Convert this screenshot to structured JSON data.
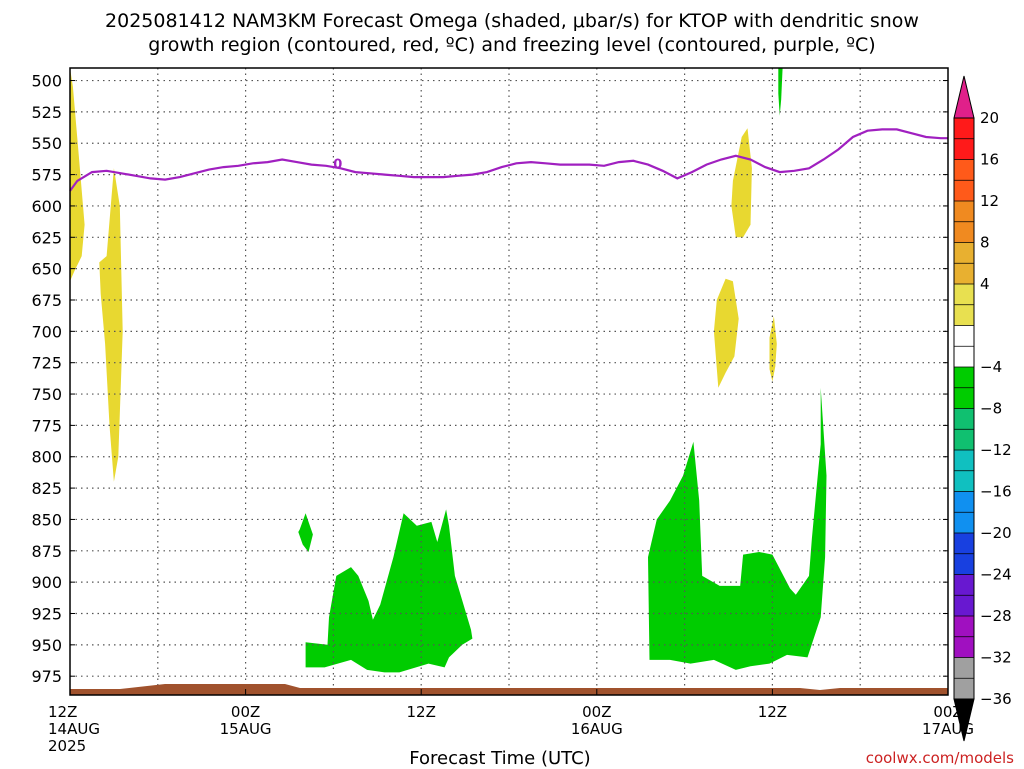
{
  "title_line1": "2025081412 NAM3KM Forecast Omega (shaded, μbar/s) for KTOP with dendritic snow",
  "title_line2": "growth region (contoured, red, ºC) and freezing level (contoured, purple, ºC)",
  "credit": "coolwx.com/models",
  "colors": {
    "freezing_level": "#a020c0",
    "upward_motion": "#00cc00",
    "downward_motion": "#e8d830",
    "terrain": "#a0522d"
  },
  "chart_data": {
    "type": "heatmap",
    "xlabel": "Forecast Time (UTC)",
    "x_ticks": [
      {
        "hour": 0,
        "line1": "12Z",
        "line2": "14AUG",
        "line3": "2025"
      },
      {
        "hour": 12,
        "line1": "00Z",
        "line2": "15AUG",
        "line3": ""
      },
      {
        "hour": 24,
        "line1": "12Z",
        "line2": "",
        "line3": ""
      },
      {
        "hour": 36,
        "line1": "00Z",
        "line2": "16AUG",
        "line3": ""
      },
      {
        "hour": 48,
        "line1": "12Z",
        "line2": "",
        "line3": ""
      },
      {
        "hour": 60,
        "line1": "00Z",
        "line2": "17AUG",
        "line3": ""
      }
    ],
    "xlim": [
      0,
      60
    ],
    "ylim": [
      490,
      990
    ],
    "y_ticks": [
      500,
      525,
      550,
      575,
      600,
      625,
      650,
      675,
      700,
      725,
      750,
      775,
      800,
      825,
      850,
      875,
      900,
      925,
      950,
      975
    ],
    "grid": true,
    "colorbar": {
      "labels": [
        "20",
        "16",
        "12",
        "8",
        "4",
        "−4",
        "−8",
        "−12",
        "−16",
        "−20",
        "−24",
        "−28",
        "−32",
        "−36"
      ],
      "colors": [
        "#ff1a1a",
        "#ff5a1a",
        "#f08a20",
        "#e8b030",
        "#e8e050",
        "#ffffff",
        "#00cc00",
        "#10c070",
        "#10c0c0",
        "#1090f0",
        "#1840e0",
        "#6818d0",
        "#a010c0",
        "#a0a0a0"
      ],
      "top_color": "#e0208a",
      "bottom_color": "#000000"
    },
    "freezing_level_label": "0",
    "freezing_level": {
      "hour": [
        0,
        0.5,
        1.5,
        2.5,
        3.5,
        4.5,
        5.5,
        6.5,
        7.5,
        8.5,
        9.5,
        10.5,
        11.5,
        12.5,
        13.5,
        14.5,
        15.5,
        16.5,
        17.5,
        18.5,
        19.5,
        20.5,
        21.5,
        22.5,
        23.5,
        24.5,
        25.5,
        26.5,
        27.5,
        28.5,
        29.5,
        30.5,
        31.5,
        32.5,
        33.5,
        34.5,
        35.5,
        36.5,
        37.5,
        38.5,
        39.5,
        40.5,
        41.5,
        42.5,
        43.5,
        44.5,
        45.5,
        46.5,
        47.5,
        48.5,
        49.5,
        50.5,
        51.5,
        52.5,
        53.5,
        54.5,
        55.5,
        56.5,
        57.5,
        58.5,
        59.5,
        60
      ],
      "pressure": [
        588,
        580,
        573,
        572,
        574,
        576,
        578,
        579,
        577,
        574,
        571,
        569,
        568,
        566,
        565,
        563,
        565,
        567,
        568,
        570,
        573,
        574,
        575,
        576,
        577,
        577,
        577,
        576,
        575,
        573,
        569,
        566,
        565,
        566,
        567,
        567,
        567,
        568,
        565,
        564,
        567,
        572,
        578,
        573,
        567,
        563,
        560,
        563,
        569,
        573,
        572,
        570,
        563,
        555,
        545,
        540,
        539,
        539,
        542,
        545,
        546,
        546
      ]
    },
    "downward_motion_areas": [
      {
        "hour": [
          0,
          0.2,
          0.6,
          1.0,
          0.8,
          0.3,
          0
        ],
        "pressure": [
          490,
          505,
          560,
          615,
          640,
          652,
          660
        ]
      },
      {
        "hour": [
          2.0,
          2.5,
          3.0,
          3.4,
          3.6,
          3.3,
          3.0,
          2.7,
          2.4,
          2.1
        ],
        "pressure": [
          645,
          640,
          570,
          600,
          700,
          800,
          820,
          775,
          710,
          670
        ]
      },
      {
        "hour": [
          45.3,
          45.9,
          46.3,
          46.6,
          46.5,
          46.0,
          45.5,
          45.2
        ],
        "pressure": [
          580,
          545,
          538,
          570,
          615,
          625,
          625,
          600
        ]
      },
      {
        "hour": [
          44.2,
          44.8,
          45.3,
          45.7,
          45.4,
          44.8,
          44.3,
          44.0
        ],
        "pressure": [
          675,
          658,
          660,
          690,
          720,
          733,
          745,
          700
        ]
      },
      {
        "hour": [
          47.8,
          48.1,
          48.3,
          48.2,
          48.0,
          47.8
        ],
        "pressure": [
          705,
          688,
          710,
          728,
          740,
          730
        ]
      }
    ],
    "upward_motion_areas": [
      {
        "hour": [
          48.4,
          48.6,
          48.7,
          48.6,
          48.5,
          48.4
        ],
        "pressure": [
          485,
          470,
          490,
          515,
          528,
          510
        ]
      },
      {
        "hour": [
          15.7,
          16.1,
          16.6,
          16.3,
          15.9,
          15.6
        ],
        "pressure": [
          858,
          845,
          862,
          876,
          870,
          860
        ]
      },
      {
        "hour": [
          16.1,
          17.6,
          17.7,
          18.2,
          19.2,
          19.7,
          20.4,
          20.7,
          21.2,
          22.1,
          22.8,
          23.7,
          24.7,
          25.1,
          25.7,
          25.9,
          26.3,
          27.4,
          27.5,
          26.8,
          25.9,
          25.6,
          24.5,
          22.5,
          21.5,
          20.3,
          19.2,
          17.4,
          16.1
        ],
        "pressure": [
          948,
          950,
          928,
          895,
          888,
          895,
          915,
          930,
          918,
          880,
          845,
          855,
          852,
          868,
          842,
          855,
          895,
          938,
          945,
          950,
          960,
          968,
          965,
          972,
          972,
          970,
          962,
          968,
          968
        ]
      },
      {
        "hour": [
          39.5,
          40.1,
          41.0,
          41.9,
          42.6,
          43.0,
          43.2,
          44.4,
          45.8,
          46.0,
          47.1,
          48.0,
          49.2,
          49.6,
          50.5,
          50.7,
          51.3,
          51.3,
          51.7,
          51.6,
          51.3,
          50.4,
          49.0,
          47.8,
          46.5,
          45.5,
          44.0,
          42.4,
          41.0,
          39.6
        ],
        "pressure": [
          880,
          850,
          835,
          815,
          788,
          835,
          895,
          903,
          903,
          878,
          876,
          878,
          905,
          910,
          895,
          865,
          790,
          745,
          815,
          880,
          928,
          960,
          958,
          965,
          967,
          970,
          962,
          965,
          962,
          962
        ]
      }
    ]
  }
}
